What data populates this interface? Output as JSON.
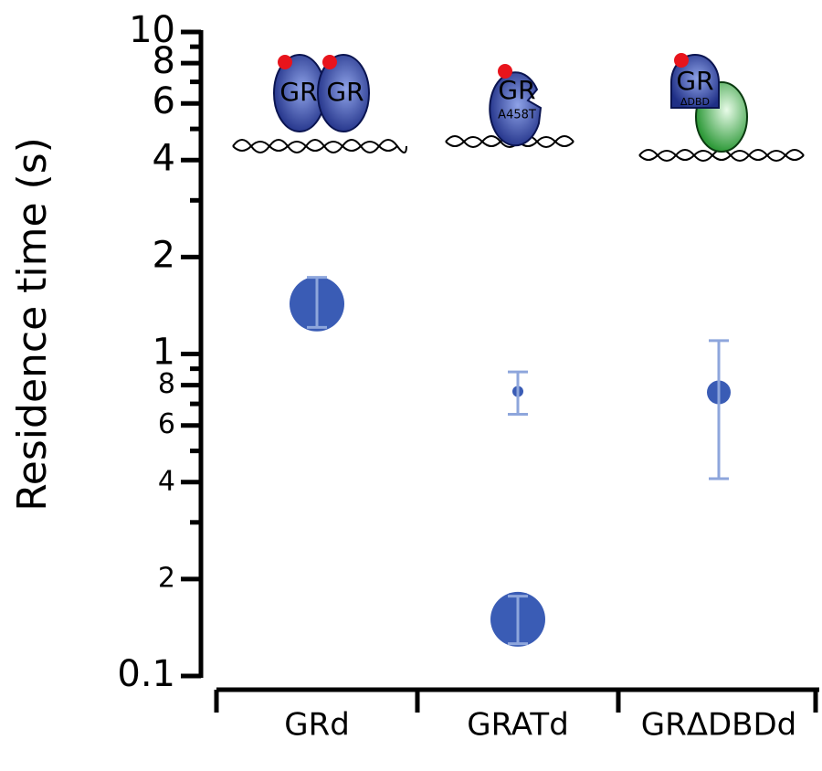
{
  "chart_data": {
    "type": "scatter",
    "ylabel": "Residence time (s)",
    "categories": [
      "GRd",
      "GRATd",
      "GRΔDBDd"
    ],
    "ylog": true,
    "ylim": [
      0.1,
      10
    ],
    "yticks": [
      {
        "value": 0.1,
        "label": "0.1"
      },
      {
        "value": 0.2,
        "label": "2"
      },
      {
        "value": 0.4,
        "label": "4"
      },
      {
        "value": 0.6,
        "label": "6"
      },
      {
        "value": 0.8,
        "label": "8"
      },
      1,
      2,
      4,
      6,
      8,
      10
    ],
    "yminorticks": [
      0.3,
      0.5,
      0.7,
      0.9,
      3,
      5,
      7,
      9
    ],
    "series": [
      {
        "color": "#3a5cb5",
        "error_color": "#8ea6dc",
        "values": [
          1.43,
          0.765,
          0.76
        ],
        "err_low": [
          1.21,
          0.65,
          0.41
        ],
        "err_high": [
          1.73,
          0.88,
          1.1
        ],
        "sizes": [
          30,
          6,
          13
        ]
      },
      {
        "color": "#3a5cb5",
        "error_color": "#8ea6dc",
        "values": [
          null,
          0.15,
          null
        ],
        "err_low": [
          null,
          0.126,
          null
        ],
        "err_high": [
          null,
          0.177,
          null
        ],
        "sizes": [
          null,
          30,
          null
        ]
      }
    ],
    "annotations": [
      {
        "labels": [
          "GR",
          "GR"
        ]
      },
      {
        "labels": [
          "GR",
          "A458T"
        ]
      },
      {
        "labels": [
          "GR",
          "ΔDBD"
        ]
      }
    ]
  }
}
